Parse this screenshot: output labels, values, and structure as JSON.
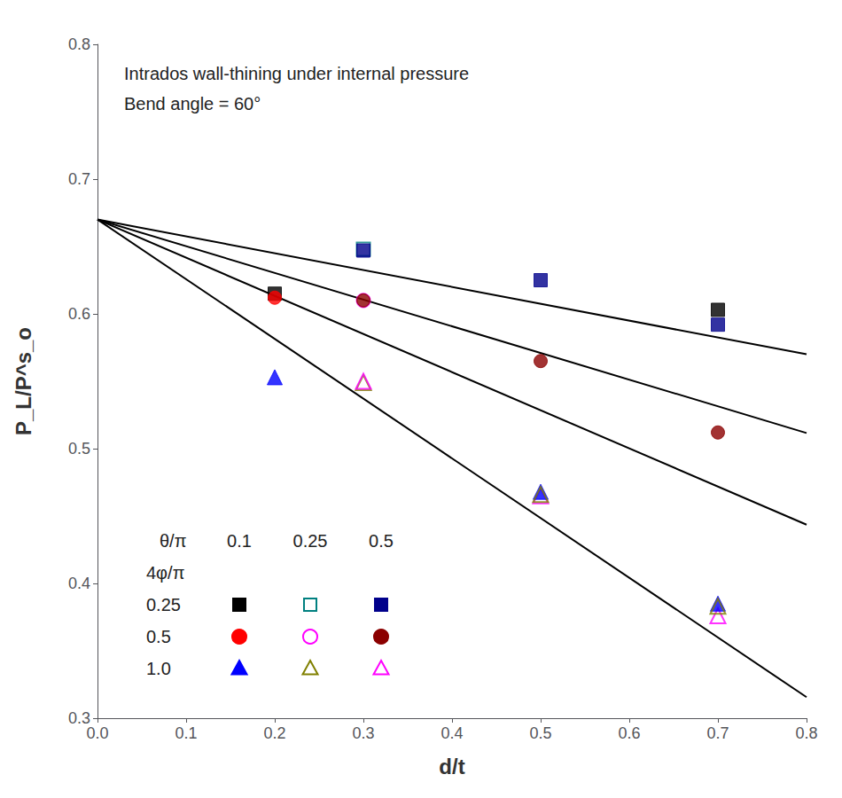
{
  "chart_data": {
    "type": "scatter",
    "title": "Intrados wall-thining under internal pressure",
    "subtitle": "Bend angle = 60°",
    "xlabel": "d/t",
    "ylabel": "P_L/P^s_o",
    "xlim": [
      0.0,
      0.8
    ],
    "ylim": [
      0.3,
      0.8
    ],
    "xticks": [
      {
        "value": 0.0,
        "label": "0.0"
      },
      0.1,
      0.2,
      0.3,
      0.4,
      0.5,
      0.6,
      0.7,
      0.8
    ],
    "yticks": [
      0.3,
      0.4,
      0.5,
      0.6,
      0.7,
      0.8
    ],
    "grid": false,
    "series": [
      {
        "type": "line",
        "line_style": "solid",
        "color": "#000000",
        "x": [
          0.0,
          0.8
        ],
        "values": [
          0.67,
          0.57
        ]
      },
      {
        "type": "line",
        "line_style": "solid",
        "color": "#000000",
        "x": [
          0.0,
          0.8
        ],
        "values": [
          0.67,
          0.5116
        ]
      },
      {
        "type": "line",
        "line_style": "solid",
        "color": "#000000",
        "x": [
          0.0,
          0.8
        ],
        "values": [
          0.67,
          0.4436
        ]
      },
      {
        "type": "line",
        "line_style": "solid",
        "color": "#000000",
        "x": [
          0.0,
          0.8
        ],
        "values": [
          0.67,
          0.3156
        ]
      },
      {
        "type": "scatter",
        "marker": "square",
        "color": "#000000",
        "x": [
          0.2
        ],
        "values": [
          0.615
        ]
      },
      {
        "type": "scatter",
        "marker": "square",
        "color": "#000000",
        "x": [
          0.7
        ],
        "values": [
          0.603
        ]
      },
      {
        "type": "scatter",
        "marker": "square-open",
        "color": "#008080",
        "x": [
          0.3
        ],
        "values": [
          0.648
        ]
      },
      {
        "type": "scatter",
        "marker": "square",
        "color": "#00008B",
        "x": [
          0.3,
          0.5,
          0.7
        ],
        "values": [
          0.647,
          0.625,
          0.592
        ]
      },
      {
        "type": "scatter",
        "marker": "circle",
        "color": "#FF0000",
        "x": [
          0.2
        ],
        "values": [
          0.612
        ]
      },
      {
        "type": "scatter",
        "marker": "circle-open",
        "color": "#FF00FF",
        "x": [
          0.3
        ],
        "values": [
          0.61
        ]
      },
      {
        "type": "scatter",
        "marker": "circle",
        "color": "#8B0000",
        "x": [
          0.3,
          0.5,
          0.7
        ],
        "values": [
          0.61,
          0.565,
          0.512
        ]
      },
      {
        "type": "scatter",
        "marker": "triangle",
        "color": "#0000FF",
        "x": [
          0.2
        ],
        "values": [
          0.553
        ]
      },
      {
        "type": "scatter",
        "marker": "triangle-open",
        "color": "#808000",
        "x": [
          0.3
        ],
        "values": [
          0.549
        ]
      },
      {
        "type": "scatter",
        "marker": "triangle-open",
        "color": "#FF00FF",
        "x": [
          0.3,
          0.5,
          0.7
        ],
        "values": [
          0.55,
          0.465,
          0.376
        ]
      },
      {
        "type": "scatter",
        "marker": "triangle",
        "color": "#0000FF",
        "x": [
          0.5,
          0.7
        ],
        "values": [
          0.468,
          0.385
        ]
      },
      {
        "type": "scatter",
        "marker": "triangle-open",
        "color": "#808000",
        "x": [
          0.5,
          0.7
        ],
        "values": [
          0.466,
          0.383
        ]
      }
    ],
    "marker_table": {
      "header": "θ/π",
      "columns": [
        "0.1",
        "0.25",
        "0.5"
      ],
      "row_header": "4φ/π",
      "rows": [
        {
          "label": "0.25",
          "cells": [
            {
              "marker": "square",
              "color": "#000000"
            },
            {
              "marker": "square-open",
              "color": "#008080"
            },
            {
              "marker": "square",
              "color": "#00008B"
            }
          ]
        },
        {
          "label": "0.5",
          "cells": [
            {
              "marker": "circle",
              "color": "#FF0000"
            },
            {
              "marker": "circle-open",
              "color": "#FF00FF"
            },
            {
              "marker": "circle",
              "color": "#8B0000"
            }
          ]
        },
        {
          "label": "1.0",
          "cells": [
            {
              "marker": "triangle",
              "color": "#0000FF"
            },
            {
              "marker": "triangle-open",
              "color": "#808000"
            },
            {
              "marker": "triangle-open",
              "color": "#FF00FF"
            }
          ]
        }
      ]
    }
  }
}
